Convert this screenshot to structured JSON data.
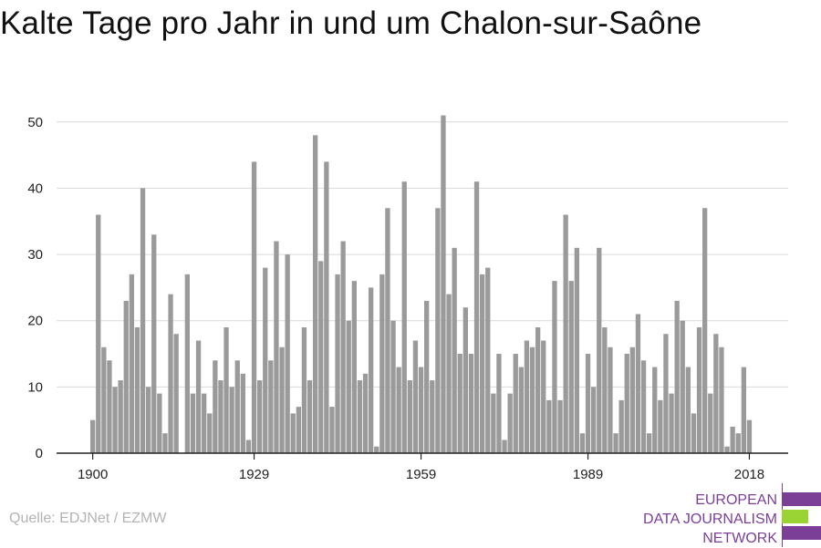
{
  "title": "Kalte Tage pro Jahr in und um Chalon-sur-Saône",
  "source": "Quelle: EDJNet / EZMW",
  "logo": {
    "line1": "EUROPEAN",
    "line2": "DATA JOURNALISM",
    "line3": "NETWORK",
    "colors": {
      "purple": "#7b3f98",
      "green": "#9ad334"
    }
  },
  "chart_data": {
    "type": "bar",
    "title": "Kalte Tage pro Jahr in und um Chalon-sur-Saône",
    "xlabel": "",
    "ylabel": "",
    "x_start": 1900,
    "x_ticks": [
      1900,
      1929,
      1959,
      1989,
      2018
    ],
    "y_ticks": [
      0,
      10,
      20,
      30,
      40,
      50
    ],
    "ylim": [
      0,
      53
    ],
    "grid": true,
    "bar_color": "#9a9a9a",
    "values": [
      5,
      36,
      16,
      14,
      10,
      11,
      23,
      27,
      19,
      40,
      10,
      33,
      9,
      3,
      24,
      18,
      0,
      27,
      9,
      17,
      9,
      6,
      14,
      11,
      19,
      10,
      14,
      12,
      2,
      44,
      11,
      28,
      14,
      32,
      16,
      30,
      6,
      7,
      19,
      11,
      48,
      29,
      44,
      7,
      27,
      32,
      20,
      26,
      11,
      12,
      25,
      1,
      27,
      37,
      20,
      13,
      41,
      11,
      17,
      13,
      23,
      11,
      37,
      51,
      24,
      31,
      15,
      22,
      15,
      41,
      27,
      28,
      9,
      15,
      2,
      9,
      15,
      13,
      17,
      16,
      19,
      17,
      8,
      26,
      8,
      36,
      26,
      31,
      3,
      15,
      10,
      31,
      19,
      16,
      3,
      8,
      15,
      16,
      21,
      14,
      3,
      13,
      8,
      18,
      9,
      23,
      20,
      13,
      6,
      19,
      37,
      9,
      18,
      16,
      1,
      4,
      3,
      13,
      5
    ]
  }
}
